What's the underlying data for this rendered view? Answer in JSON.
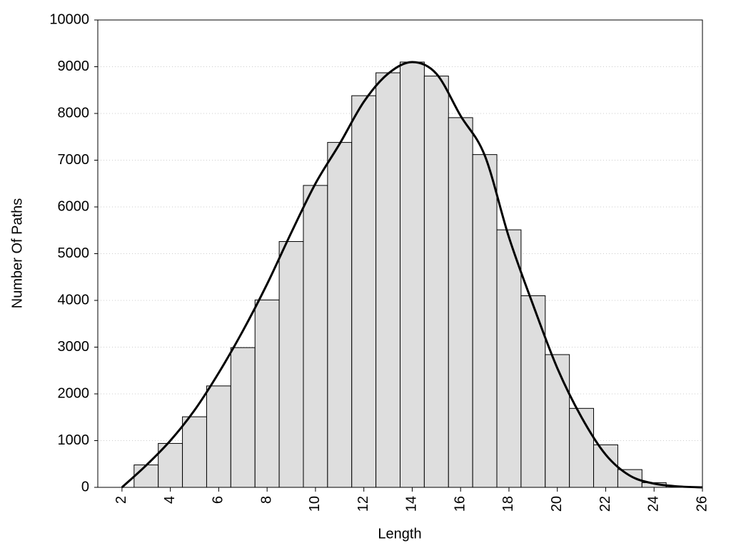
{
  "chart_data": {
    "type": "histogram",
    "xlabel": "Length",
    "ylabel": "Number Of Paths",
    "bins": [
      2.5,
      3.5,
      4.5,
      5.5,
      6.5,
      7.5,
      8.5,
      9.5,
      10.5,
      11.5,
      12.5,
      13.5,
      14.5,
      15.5,
      16.5,
      17.5,
      18.5,
      19.5,
      20.5,
      21.5,
      22.5,
      23.5,
      24.5,
      25.5
    ],
    "values": [
      480,
      940,
      1510,
      2170,
      2990,
      4010,
      5260,
      6460,
      7380,
      8380,
      8870,
      9100,
      8800,
      7910,
      7120,
      5510,
      4100,
      2840,
      1690,
      910,
      380,
      100,
      20
    ],
    "color": "#dedede",
    "curve": {
      "type": "line",
      "color": "#000000",
      "x": [
        2,
        3,
        4,
        5,
        6,
        7,
        8,
        9,
        10,
        11,
        12,
        13,
        14,
        15,
        16,
        17,
        18,
        19,
        20,
        21,
        22,
        23,
        24,
        25,
        26
      ],
      "values": [
        0,
        470,
        1000,
        1650,
        2450,
        3350,
        4350,
        5450,
        6500,
        7350,
        8250,
        8850,
        9100,
        8850,
        7950,
        7100,
        5350,
        3900,
        2550,
        1500,
        700,
        250,
        80,
        20,
        0
      ]
    },
    "xlim": [
      1,
      26
    ],
    "xticks": [
      2,
      4,
      6,
      8,
      10,
      12,
      14,
      16,
      18,
      20,
      22,
      24,
      26
    ],
    "ylim": [
      0,
      10000
    ],
    "yticks": [
      0,
      1000,
      2000,
      3000,
      4000,
      5000,
      6000,
      7000,
      8000,
      9000,
      10000
    ],
    "grid": true
  }
}
